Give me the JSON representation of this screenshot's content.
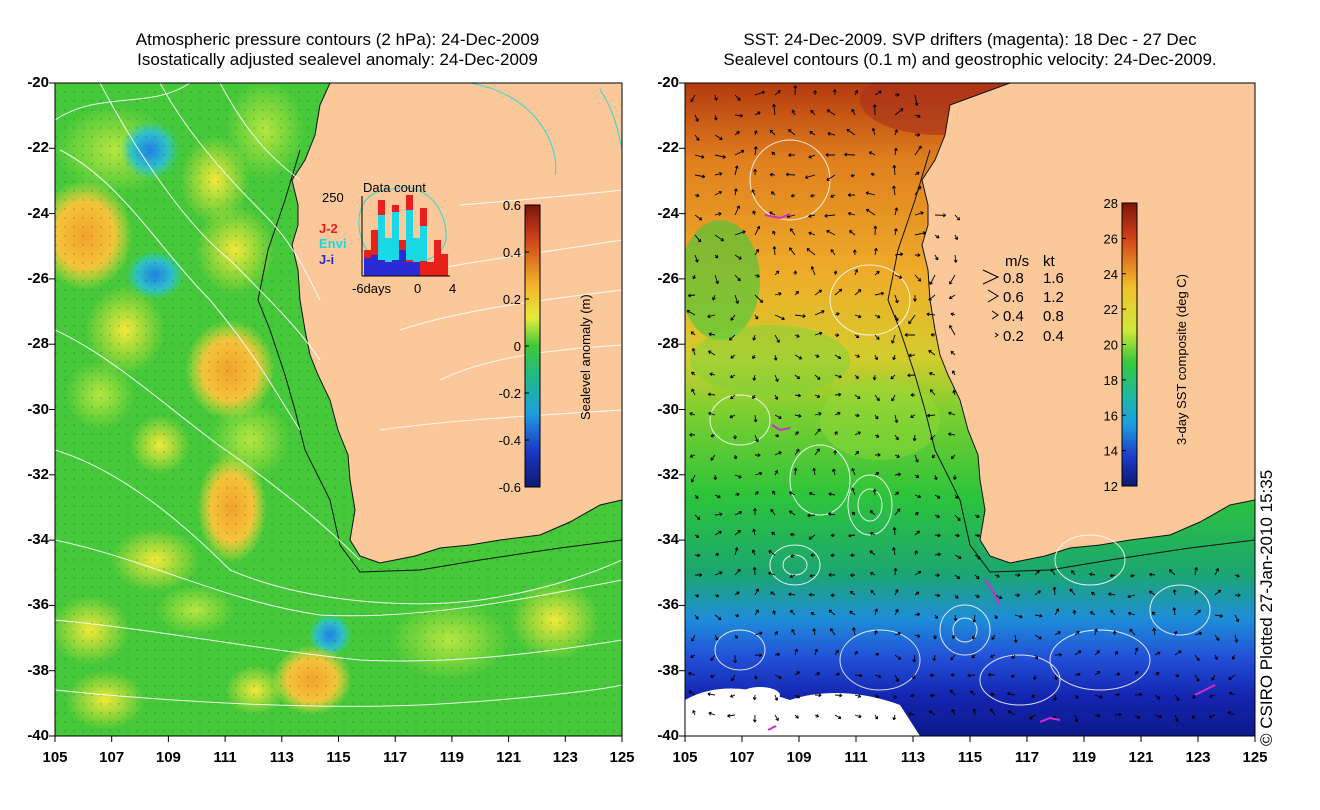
{
  "left_panel": {
    "title_line1": "Atmospheric pressure contours (2 hPa): 24-Dec-2009",
    "title_line2": "Isostatically adjusted sealevel anomaly: 24-Dec-2009",
    "y_ticks": [
      "-20",
      "-22",
      "-24",
      "-26",
      "-28",
      "-30",
      "-32",
      "-34",
      "-36",
      "-38",
      "-40"
    ],
    "x_ticks": [
      "105",
      "107",
      "109",
      "111",
      "113",
      "115",
      "117",
      "119",
      "121",
      "123",
      "125"
    ],
    "data_count": {
      "title": "Data count",
      "y_max_label": "250",
      "x_labels": [
        "-6days",
        "0",
        "4"
      ],
      "legend": [
        {
          "label": "J-2",
          "color": "#e8201c"
        },
        {
          "label": "Envi",
          "color": "#19d8e6"
        },
        {
          "label": "J-i",
          "color": "#2b2bd6"
        }
      ]
    },
    "colorbar": {
      "label": "Sealevel anomaly (m)",
      "ticks": [
        "0.6",
        "0.4",
        "0.2",
        "0",
        "-0.2",
        "-0.4",
        "-0.6"
      ]
    }
  },
  "right_panel": {
    "title_line1": "SST: 24-Dec-2009. SVP drifters (magenta): 18 Dec - 27 Dec",
    "title_line2": "Sealevel contours (0.1 m) and geostrophic velocity: 24-Dec-2009.",
    "y_ticks": [
      "-20",
      "-22",
      "-24",
      "-26",
      "-28",
      "-30",
      "-32",
      "-34",
      "-36",
      "-38",
      "-40"
    ],
    "x_ticks": [
      "105",
      "107",
      "109",
      "111",
      "113",
      "115",
      "117",
      "119",
      "121",
      "123",
      "125"
    ],
    "velocity_key": {
      "headers": [
        "m/s",
        "kt"
      ],
      "rows": [
        {
          "ms": "0.8",
          "kt": "1.6"
        },
        {
          "ms": "0.6",
          "kt": "1.2"
        },
        {
          "ms": "0.4",
          "kt": "0.8"
        },
        {
          "ms": "0.2",
          "kt": "0.4"
        }
      ]
    },
    "colorbar": {
      "label": "3-day SST composite (deg C)",
      "ticks": [
        "28",
        "26",
        "24",
        "22",
        "20",
        "18",
        "16",
        "14",
        "12"
      ]
    }
  },
  "copyright": "© CSIRO Plotted 27-Jan-2010 15:35",
  "colors": {
    "land": "#fbc89a",
    "ocean_green": "#3fc93a",
    "contour": "#ffffff",
    "coast": "#111111",
    "drifter": "#d22bd2"
  }
}
